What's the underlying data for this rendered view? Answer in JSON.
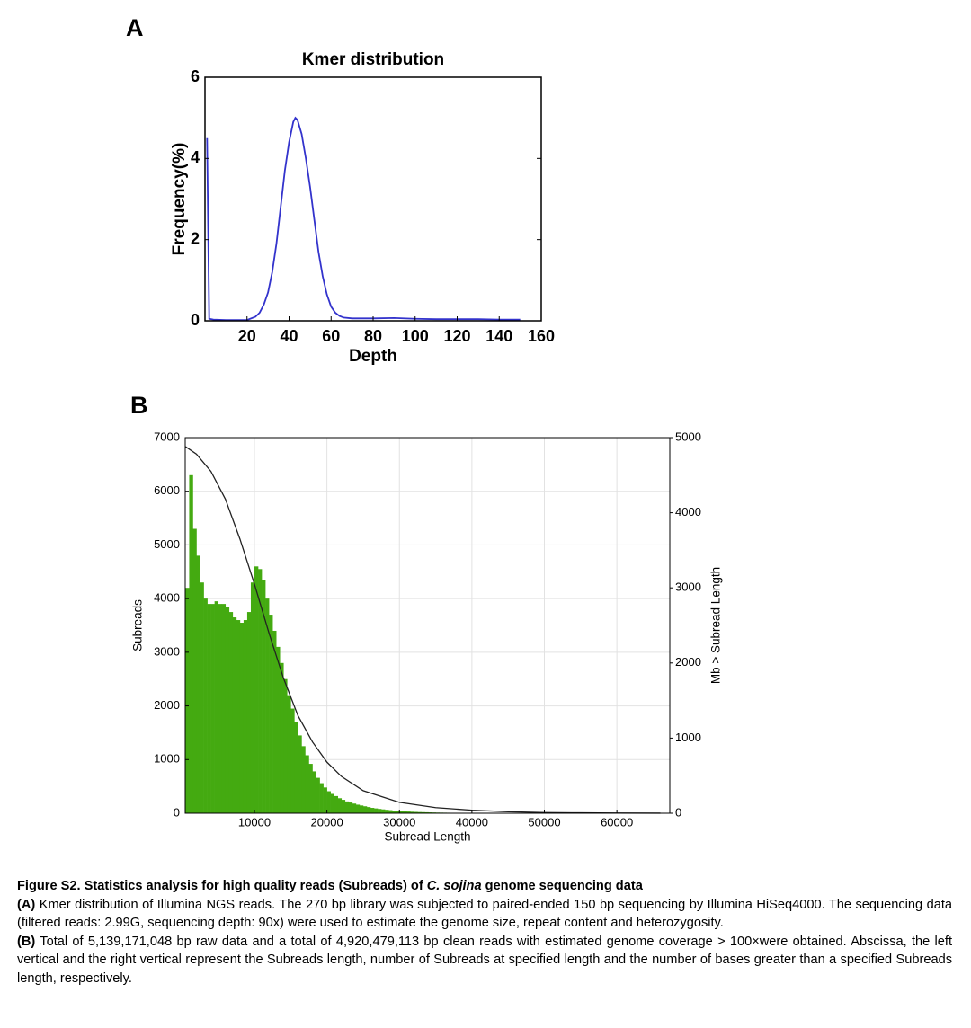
{
  "chart_data": [
    {
      "type": "line",
      "panel": "A",
      "title": "Kmer distribution",
      "xlabel": "Depth",
      "ylabel": "Frequency(%)",
      "xlim": [
        0,
        160
      ],
      "xticks": [
        20,
        40,
        60,
        80,
        100,
        120,
        140,
        160
      ],
      "ylim": [
        0,
        6
      ],
      "yticks": [
        0,
        2,
        4,
        6
      ],
      "grid": false,
      "x": [
        1,
        2,
        4,
        10,
        20,
        24,
        26,
        28,
        30,
        32,
        34,
        36,
        38,
        40,
        42,
        43,
        44,
        46,
        48,
        50,
        52,
        54,
        56,
        58,
        60,
        62,
        64,
        66,
        70,
        80,
        90,
        100,
        110,
        120,
        130,
        140,
        150
      ],
      "series": [
        {
          "color": "#3333cc",
          "values": [
            4.5,
            0.05,
            0.03,
            0.02,
            0.02,
            0.1,
            0.2,
            0.4,
            0.7,
            1.2,
            1.9,
            2.8,
            3.7,
            4.4,
            4.9,
            5.0,
            4.95,
            4.6,
            4.0,
            3.3,
            2.5,
            1.7,
            1.1,
            0.65,
            0.35,
            0.2,
            0.12,
            0.08,
            0.06,
            0.06,
            0.07,
            0.05,
            0.04,
            0.04,
            0.04,
            0.03,
            0.03
          ]
        }
      ]
    },
    {
      "type": "histogram",
      "panel": "B",
      "xlabel": "Subread Length",
      "ylabel": "Subreads",
      "y2label": "Mb > Subread Length",
      "xlim": [
        450,
        67300
      ],
      "xticks": [
        10000,
        20000,
        30000,
        40000,
        50000,
        60000
      ],
      "ylim": [
        0,
        7000
      ],
      "yticks": [
        0,
        1000,
        2000,
        3000,
        4000,
        5000,
        6000,
        7000
      ],
      "y2lim": [
        0,
        5000
      ],
      "y2ticks": [
        0,
        1000,
        2000,
        3000,
        4000,
        5000
      ],
      "grid": true,
      "bins": [
        500,
        1000,
        1500,
        2000,
        2500,
        3000,
        3500,
        4000,
        4500,
        5000,
        5500,
        6000,
        6500,
        7000,
        7500,
        8000,
        8500,
        9000,
        9500,
        10000,
        10500,
        11000,
        11500,
        12000,
        12500,
        13000,
        13500,
        14000,
        14500,
        15000,
        15500,
        16000,
        16500,
        17000,
        17500,
        18000,
        18500,
        19000,
        19500,
        20000,
        20500,
        21000,
        21500,
        22000,
        22500,
        23000,
        23500,
        24000,
        24500,
        25000,
        25500,
        26000,
        26500,
        27000,
        27500,
        28000,
        28500,
        29000,
        29500,
        30000,
        30500,
        31000,
        31500,
        32000,
        32500,
        33000,
        33500,
        34000,
        34500,
        35000,
        35500,
        36000,
        36500,
        37000,
        37500,
        38000,
        38500,
        39000,
        39500,
        40000
      ],
      "series": [
        {
          "type": "histogram",
          "color": "#44aa11",
          "values": [
            4200,
            6300,
            5300,
            4800,
            4300,
            4000,
            3900,
            3900,
            3950,
            3900,
            3900,
            3850,
            3750,
            3650,
            3600,
            3550,
            3600,
            3750,
            4300,
            4600,
            4550,
            4350,
            4000,
            3700,
            3400,
            3100,
            2800,
            2500,
            2200,
            1950,
            1700,
            1450,
            1250,
            1080,
            920,
            780,
            660,
            560,
            480,
            410,
            360,
            320,
            280,
            250,
            220,
            200,
            180,
            160,
            145,
            130,
            115,
            100,
            90,
            80,
            72,
            64,
            57,
            50,
            45,
            40,
            36,
            32,
            28,
            25,
            22,
            20,
            18,
            16,
            14,
            12,
            11,
            10,
            9,
            8,
            7,
            6,
            5,
            5,
            4
          ]
        },
        {
          "type": "line",
          "axis": "y2",
          "color": "#222222",
          "x": [
            500,
            2000,
            4000,
            6000,
            8000,
            10000,
            12000,
            14000,
            16000,
            18000,
            20000,
            22000,
            25000,
            30000,
            35000,
            40000,
            45000,
            50000,
            55000,
            60000,
            66000
          ],
          "values": [
            4880,
            4780,
            4550,
            4180,
            3650,
            3050,
            2400,
            1800,
            1300,
            950,
            680,
            490,
            300,
            145,
            75,
            40,
            20,
            9,
            5,
            2,
            1
          ]
        }
      ]
    }
  ],
  "caption": {
    "title": [
      "Figure S2.  Statistics analysis for high quality reads (Subreads) of ",
      "C. sojina",
      " genome sequencing data"
    ],
    "paragraphs": [
      {
        "label": "(A)",
        "text": "Kmer distribution of Illumina NGS reads. The 270 bp library was subjected to paired-ended 150 bp sequencing by Illumina HiSeq4000. The sequencing data (filtered reads: 2.99G, sequencing depth: 90x) were used to estimate the genome size, repeat content and heterozygosity."
      },
      {
        "label": "(B)",
        "text": "Total of 5,139,171,048 bp raw data and a total of 4,920,479,113 bp clean reads with estimated genome coverage > 100×were obtained. Abscissa, the left vertical and  the right vertical represent the Subreads length, number of Subreads at specified length and the number of bases greater than a specified Subreads length, respectively."
      }
    ]
  }
}
